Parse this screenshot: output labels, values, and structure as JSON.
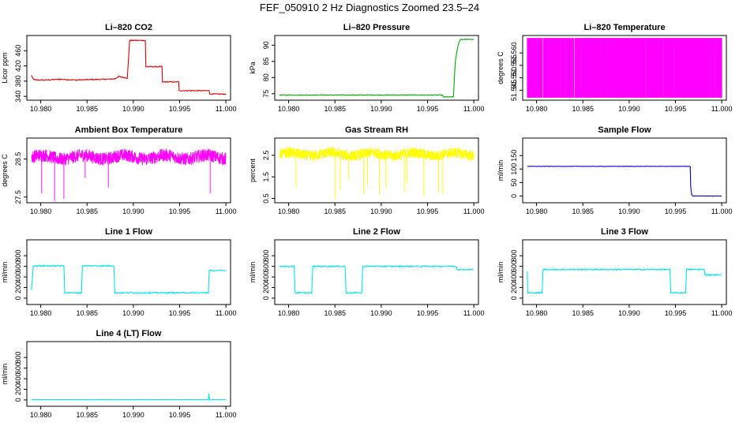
{
  "figure_title": "FEF_050910  2 Hz Diagnostics Zoomed 23.5–24",
  "chart_data": [
    {
      "type": "line",
      "title": "Li–820 CO2",
      "ylabel": "Licor ppm",
      "color": "#dd0000",
      "xlim": [
        10.9785,
        11.0005
      ],
      "ylim": [
        330,
        500
      ],
      "xticks": [
        "10.980",
        "10.985",
        "10.990",
        "10.995",
        "11.000"
      ],
      "yticks": [
        340,
        380,
        420,
        460
      ],
      "x": [
        10.979,
        10.9792,
        10.9795,
        10.9805,
        10.982,
        10.9838,
        10.985,
        10.987,
        10.988,
        10.9884,
        10.98865,
        10.9892,
        10.98935,
        10.9896,
        10.98965,
        10.9913,
        10.99135,
        10.9931,
        10.99315,
        10.9949,
        10.99495,
        10.9982,
        10.99825,
        11.0
      ],
      "y": [
        395,
        385,
        383,
        383,
        385,
        383,
        384,
        385,
        386,
        392,
        391,
        389,
        388,
        485,
        487,
        487,
        418,
        418,
        378,
        378,
        355,
        355,
        346,
        346
      ],
      "noise": 1.2
    },
    {
      "type": "line",
      "title": "Li–820 Pressure",
      "ylabel": "kPa",
      "color": "#00aa00",
      "xlim": [
        10.9785,
        11.0005
      ],
      "ylim": [
        73,
        93
      ],
      "xticks": [
        "10.980",
        "10.985",
        "10.990",
        "10.995",
        "11.000"
      ],
      "yticks": [
        75,
        80,
        85,
        90
      ],
      "x": [
        10.979,
        10.9966,
        10.9967,
        10.9978,
        10.9979,
        10.998,
        10.9982,
        10.9984,
        10.9986,
        11.0
      ],
      "y": [
        74.6,
        74.6,
        74.0,
        74.0,
        80.0,
        85.0,
        88.5,
        91.0,
        91.8,
        91.8
      ],
      "noise": 0.1
    },
    {
      "type": "band",
      "title": "Li–820 Temperature",
      "ylabel": "degrees C",
      "color": "#ff00ff",
      "xlim": [
        10.9785,
        11.0005
      ],
      "ylim": [
        51.541,
        51.567
      ],
      "xticks": [
        "10.980",
        "10.985",
        "10.990",
        "10.995",
        "11.000"
      ],
      "yticks": [
        "51.545",
        "51.550",
        "51.555",
        "51.560"
      ],
      "band_range": [
        51.542,
        51.566
      ],
      "x_range": [
        10.979,
        11.0
      ]
    },
    {
      "type": "line",
      "title": "Ambient Box Temperature",
      "ylabel": "degrees C",
      "color": "#ff00ff",
      "xlim": [
        10.9785,
        11.0005
      ],
      "ylim": [
        27.35,
        29.05
      ],
      "xticks": [
        "10.980",
        "10.985",
        "10.990",
        "10.995",
        "11.000"
      ],
      "yticks": [
        "27.5",
        "28.5"
      ],
      "x_range": [
        10.979,
        11.0
      ],
      "center": 28.55,
      "spread": 0.17,
      "spikes_x": [
        10.9801,
        10.9815,
        10.9825,
        10.9848,
        10.9873,
        10.9983
      ],
      "spikes_y": [
        27.6,
        27.4,
        27.45,
        28.0,
        27.75,
        27.6
      ]
    },
    {
      "type": "line",
      "title": "Gas Stream RH",
      "ylabel": "percent",
      "color": "#ffff00",
      "xlim": [
        10.9785,
        11.0005
      ],
      "ylim": [
        0.3,
        3.3
      ],
      "xticks": [
        "10.980",
        "10.985",
        "10.990",
        "10.995",
        "11.000"
      ],
      "yticks": [
        "0.5",
        "1.5",
        "2.5"
      ],
      "x_range": [
        10.979,
        11.0
      ],
      "center": 2.55,
      "spread": 0.25,
      "spikes_x": [
        10.9808,
        10.985,
        10.9856,
        10.9865,
        10.9881,
        10.9885,
        10.9898,
        10.9905,
        10.9925,
        10.9928,
        10.9946,
        10.9962,
        10.9966
      ],
      "spikes_y": [
        1.0,
        0.5,
        0.9,
        1.4,
        0.7,
        1.1,
        0.7,
        1.0,
        0.8,
        1.2,
        0.6,
        0.8,
        0.7
      ]
    },
    {
      "type": "line",
      "title": "Sample Flow",
      "ylabel": "ml/min",
      "color": "#0000bb",
      "xlim": [
        10.9785,
        11.0005
      ],
      "ylim": [
        -25,
        215
      ],
      "xticks": [
        "10.980",
        "10.985",
        "10.990",
        "10.995",
        "11.000"
      ],
      "yticks": [
        0,
        50,
        100,
        150
      ],
      "x": [
        10.979,
        10.9966,
        10.99665,
        10.99675,
        10.9969,
        11.0
      ],
      "y": [
        110,
        110,
        35,
        5,
        0,
        0
      ],
      "noise": 0.6
    },
    {
      "type": "line",
      "title": "Line 1 Flow",
      "ylabel": "ml/min",
      "color": "#00e5ee",
      "xlim": [
        10.9785,
        11.0005
      ],
      "ylim": [
        -120,
        1100
      ],
      "xticks": [
        "10.980",
        "10.985",
        "10.990",
        "10.995",
        "11.000"
      ],
      "yticks": [
        0,
        200,
        400,
        600,
        800
      ],
      "x": [
        10.979,
        10.9792,
        10.9825,
        10.9826,
        10.9844,
        10.9845,
        10.9879,
        10.988,
        10.9981,
        10.9982,
        11.0
      ],
      "y": [
        160,
        610,
        610,
        100,
        100,
        610,
        610,
        100,
        100,
        520,
        520
      ],
      "noise": 12
    },
    {
      "type": "line",
      "title": "Line 2 Flow",
      "ylabel": "ml/min",
      "color": "#00e5ee",
      "xlim": [
        10.9785,
        11.0005
      ],
      "ylim": [
        -120,
        1100
      ],
      "xticks": [
        "10.980",
        "10.985",
        "10.990",
        "10.995",
        "11.000"
      ],
      "yticks": [
        0,
        200,
        400,
        600,
        800
      ],
      "x": [
        10.979,
        10.9806,
        10.9807,
        10.9825,
        10.9826,
        10.9861,
        10.9862,
        10.9879,
        10.988,
        10.9981,
        10.9982,
        11.0
      ],
      "y": [
        600,
        600,
        100,
        100,
        600,
        600,
        100,
        100,
        600,
        600,
        540,
        540
      ],
      "noise": 12
    },
    {
      "type": "line",
      "title": "Line 3 Flow",
      "ylabel": "ml/min",
      "color": "#00e5ee",
      "xlim": [
        10.9785,
        11.0005
      ],
      "ylim": [
        -120,
        1100
      ],
      "xticks": [
        "10.980",
        "10.985",
        "10.990",
        "10.995",
        "11.000"
      ],
      "yticks": [
        0,
        200,
        400,
        600,
        800
      ],
      "x": [
        10.979,
        10.97905,
        10.9792,
        10.9806,
        10.9807,
        10.9944,
        10.9945,
        10.9961,
        10.9962,
        10.9981,
        10.9982,
        11.0
      ],
      "y": [
        500,
        100,
        100,
        100,
        540,
        540,
        100,
        100,
        540,
        540,
        440,
        440
      ],
      "noise": 12
    },
    {
      "type": "line",
      "title": "Line 4 (LT) Flow",
      "ylabel": "ml/min",
      "color": "#00e5ee",
      "xlim": [
        10.9785,
        11.0005
      ],
      "ylim": [
        -120,
        1100
      ],
      "xticks": [
        "10.980",
        "10.985",
        "10.990",
        "10.995",
        "11.000"
      ],
      "yticks": [
        0,
        200,
        400,
        600,
        800
      ],
      "x": [
        10.979,
        10.9981,
        10.99815,
        10.9982,
        10.99825,
        11.0
      ],
      "y": [
        5,
        5,
        120,
        50,
        5,
        5
      ],
      "noise": 2
    }
  ]
}
